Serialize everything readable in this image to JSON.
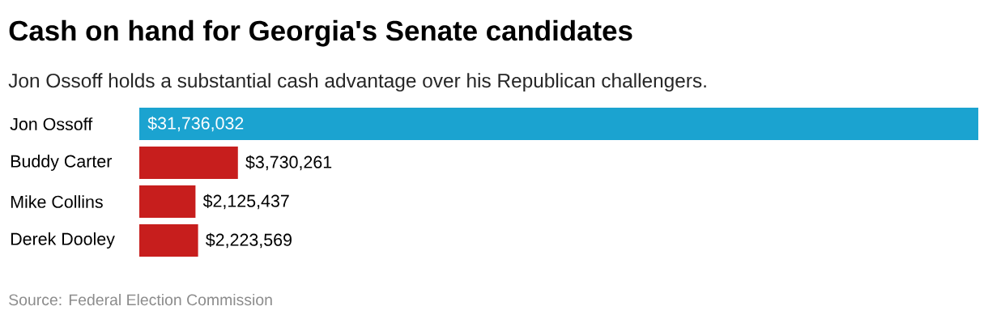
{
  "chart_data": {
    "type": "bar",
    "orientation": "horizontal",
    "title": "Cash on hand for Georgia's Senate candidates",
    "subtitle": "Jon Ossoff holds a substantial cash advantage over his Republican challengers.",
    "categories": [
      "Jon Ossoff",
      "Buddy Carter",
      "Mike Collins",
      "Derek Dooley"
    ],
    "values": [
      31736032,
      3730261,
      2125437,
      2223569
    ],
    "value_labels": [
      "$31,736,032",
      "$3,730,261",
      "$2,125,437",
      "$2,223,569"
    ],
    "colors": [
      "#1ba3d0",
      "#c71e1d",
      "#c71e1d",
      "#c71e1d"
    ],
    "annotations": [
      "Source: Federal Election Commission"
    ]
  }
}
